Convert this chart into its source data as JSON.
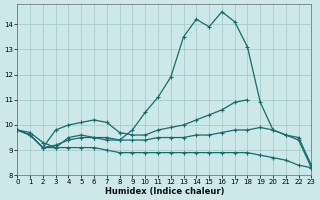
{
  "xlabel": "Humidex (Indice chaleur)",
  "xlim": [
    0,
    23
  ],
  "ylim": [
    8.0,
    14.8
  ],
  "yticks": [
    8,
    9,
    10,
    11,
    12,
    13,
    14
  ],
  "xticks": [
    0,
    1,
    2,
    3,
    4,
    5,
    6,
    7,
    8,
    9,
    10,
    11,
    12,
    13,
    14,
    15,
    16,
    17,
    18,
    19,
    20,
    21,
    22,
    23
  ],
  "bg_color": "#cce8e8",
  "grid_color": "#a8cccc",
  "line_color": "#1a6b6b",
  "curve1_x": [
    0,
    1,
    2,
    3,
    4,
    5,
    6,
    7,
    8,
    9,
    10,
    11,
    12,
    13,
    14,
    15,
    16,
    17,
    18,
    19,
    20,
    21,
    22,
    23
  ],
  "curve1_y": [
    9.8,
    9.6,
    9.1,
    9.1,
    9.5,
    9.6,
    9.5,
    9.5,
    9.4,
    9.8,
    10.5,
    11.1,
    11.9,
    13.5,
    14.2,
    13.9,
    14.5,
    14.1,
    13.1,
    10.9,
    9.8,
    9.6,
    9.4,
    8.3
  ],
  "curve2_x": [
    0,
    1,
    2,
    3,
    4,
    5,
    6,
    7,
    8,
    9,
    10,
    11,
    12,
    13,
    14,
    15,
    16,
    17,
    18
  ],
  "curve2_y": [
    9.8,
    9.6,
    9.1,
    9.8,
    10.0,
    10.1,
    10.2,
    10.1,
    9.7,
    9.6,
    9.6,
    9.8,
    9.9,
    10.0,
    10.2,
    10.4,
    10.6,
    10.9,
    11.0
  ],
  "curve3_x": [
    0,
    1,
    2,
    3,
    4,
    5,
    6,
    7,
    8,
    9,
    10,
    11,
    12,
    13,
    14,
    15,
    16,
    17,
    18,
    19,
    20,
    21,
    22,
    23
  ],
  "curve3_y": [
    9.8,
    9.6,
    9.1,
    9.2,
    9.4,
    9.5,
    9.5,
    9.4,
    9.4,
    9.4,
    9.4,
    9.5,
    9.5,
    9.5,
    9.6,
    9.6,
    9.7,
    9.8,
    9.8,
    9.9,
    9.8,
    9.6,
    9.5,
    8.4
  ],
  "curve4_x": [
    0,
    1,
    2,
    3,
    4,
    5,
    6,
    7,
    8,
    9,
    10,
    11,
    12,
    13,
    14,
    15,
    16,
    17,
    18,
    19,
    20,
    21,
    22,
    23
  ],
  "curve4_y": [
    9.8,
    9.7,
    9.3,
    9.1,
    9.1,
    9.1,
    9.1,
    9.0,
    8.9,
    8.9,
    8.9,
    8.9,
    8.9,
    8.9,
    8.9,
    8.9,
    8.9,
    8.9,
    8.9,
    8.8,
    8.7,
    8.6,
    8.4,
    8.3
  ]
}
